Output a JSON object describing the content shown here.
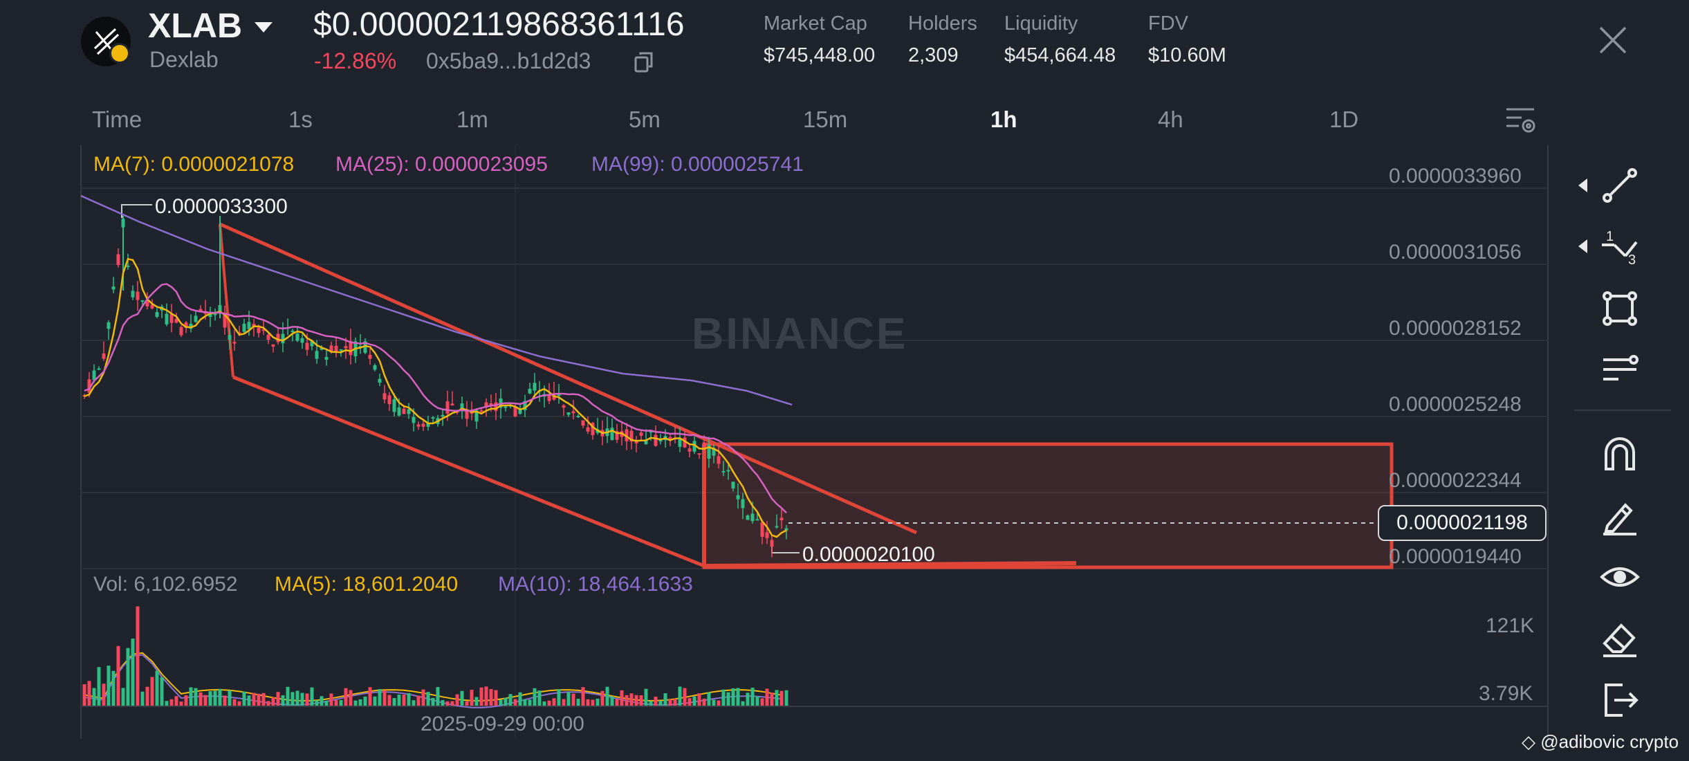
{
  "header": {
    "symbol": "XLAB",
    "exchange": "Dexlab",
    "price": "$0.000002119868361116",
    "change": "-12.86%",
    "address": "0x5ba9...b1d2d3",
    "stats": [
      {
        "label": "Market Cap",
        "value": "$745,448.00"
      },
      {
        "label": "Holders",
        "value": "2,309"
      },
      {
        "label": "Liquidity",
        "value": "$454,664.48"
      },
      {
        "label": "FDV",
        "value": "$10.60M"
      }
    ]
  },
  "timeframes": [
    "Time",
    "1s",
    "1m",
    "5m",
    "15m",
    "1h",
    "4h",
    "1D"
  ],
  "active_timeframe": "1h",
  "main_indicators": {
    "ma7": "MA(7): 0.0000021078",
    "ma25": "MA(25): 0.0000023095",
    "ma99": "MA(99): 0.0000025741"
  },
  "volume_indicators": {
    "vol": "Vol: 6,102.6952",
    "ma5": "MA(5): 18,601.2040",
    "ma10": "MA(10): 18,464.1633"
  },
  "price_axis": [
    "0.0000033960",
    "0.0000031056",
    "0.0000028152",
    "0.0000025248",
    "0.0000022344",
    "0.0000019440"
  ],
  "current_price_tag": "0.0000021198",
  "high_callout": "0.0000033300",
  "low_callout": "0.0000020100",
  "volume_axis": [
    "121K",
    "3.79K"
  ],
  "date_label": "2025-09-29 00:00",
  "watermark": "BINANCE",
  "footer": "@adibovic crypto",
  "colors": {
    "background": "#1f232b",
    "up": "#2ebd85",
    "down": "#f6465d",
    "ma7": "#f0b90b",
    "ma25": "#d662c2",
    "ma99": "#8a6fd1",
    "drawing": "#e0453a"
  },
  "tools": [
    "trend-line-icon",
    "fibonacci-icon",
    "shape-icon",
    "indicator-lines-icon",
    "magnet-icon",
    "pen-icon",
    "eye-icon",
    "eraser-icon",
    "exit-icon"
  ]
}
